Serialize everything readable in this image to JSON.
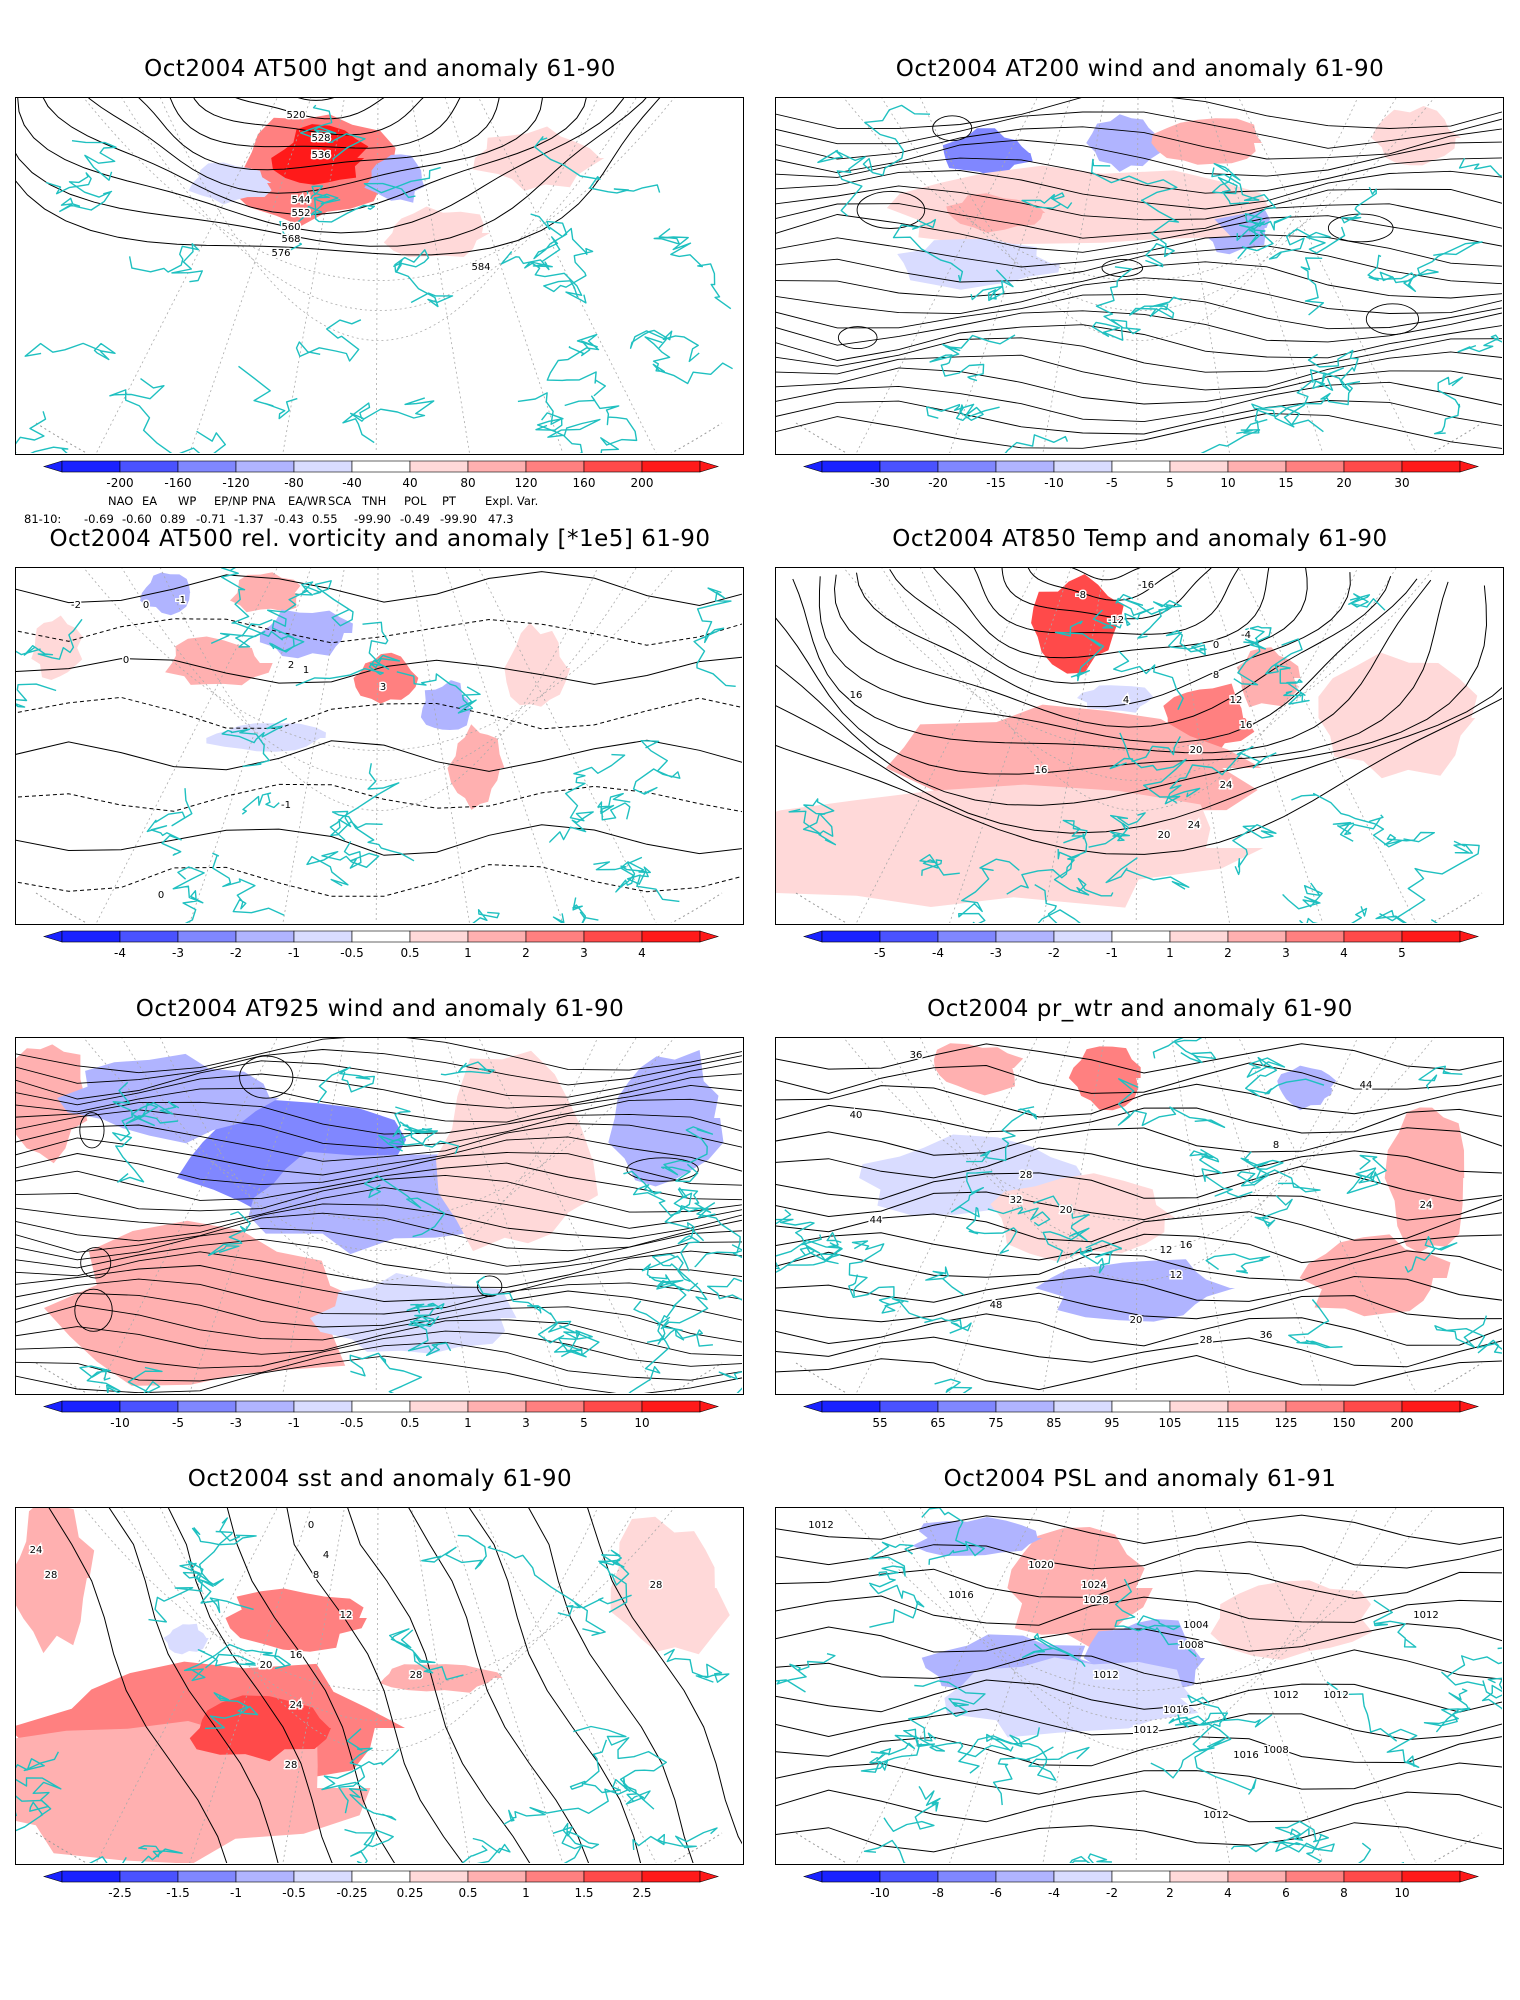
{
  "colors": {
    "coast": "#1fc0c0",
    "contour": "#000000",
    "pos_scale": [
      "#ffd9d9",
      "#ffb0b0",
      "#ff8080",
      "#ff4a4a",
      "#ff1a1a"
    ],
    "neg_scale": [
      "#d9dcff",
      "#b0b4ff",
      "#8087ff",
      "#4a52ff",
      "#1a22ff"
    ]
  },
  "panels": [
    {
      "id": "hgt500",
      "title": "Oct2004 AT500 hgt and anomaly 61-90",
      "colorbar": [
        "-200",
        "-160",
        "-120",
        "-80",
        "-40",
        "40",
        "80",
        "120",
        "160",
        "200"
      ],
      "contour_labels": [
        "520",
        "528",
        "536",
        "544",
        "552",
        "560",
        "568",
        "576",
        "584"
      ],
      "indices": {
        "names": [
          "NAO",
          "EA",
          "WP",
          "EP/NP",
          "PNA",
          "EA/WR",
          "SCA",
          "TNH",
          "POL",
          "PT",
          "Expl. Var."
        ],
        "row_label": "81-10:",
        "values": [
          "-0.69",
          "-0.60",
          "0.89",
          "-0.71",
          "-1.37",
          "-0.43",
          "0.55",
          "-99.90",
          "-0.49",
          "-99.90",
          "47.3"
        ]
      }
    },
    {
      "id": "wind200",
      "title": "Oct2004 AT200 wind and anomaly 61-90",
      "colorbar": [
        "-30",
        "-20",
        "-15",
        "-10",
        "-5",
        "5",
        "10",
        "15",
        "20",
        "30"
      ],
      "contour_labels": []
    },
    {
      "id": "vort500",
      "title": "Oct2004 AT500 rel. vorticity and anomaly [*1e5] 61-90",
      "colorbar": [
        "-4",
        "-3",
        "-2",
        "-1",
        "-0.5",
        "0.5",
        "1",
        "2",
        "3",
        "4"
      ],
      "contour_labels": [
        "0",
        "-1",
        "1",
        "2",
        "3",
        "-2",
        "0",
        "-1",
        "0"
      ]
    },
    {
      "id": "temp850",
      "title": "Oct2004 AT850 Temp and anomaly 61-90",
      "colorbar": [
        "-5",
        "-4",
        "-3",
        "-2",
        "-1",
        "1",
        "2",
        "3",
        "4",
        "5"
      ],
      "contour_labels": [
        "-16",
        "-8",
        "-12",
        "4",
        "8",
        "12",
        "16",
        "20",
        "24",
        "16",
        "20",
        "24",
        "16",
        "0",
        "-4"
      ]
    },
    {
      "id": "wind925",
      "title": "Oct2004 AT925 wind and anomaly 61-90",
      "colorbar": [
        "-10",
        "-5",
        "-3",
        "-1",
        "-0.5",
        "0.5",
        "1",
        "3",
        "5",
        "10"
      ],
      "contour_labels": []
    },
    {
      "id": "prwtr",
      "title": "Oct2004 pr_wtr and anomaly 61-90",
      "colorbar": [
        "55",
        "65",
        "75",
        "85",
        "95",
        "105",
        "115",
        "125",
        "150",
        "200"
      ],
      "contour_labels": [
        "36",
        "40",
        "44",
        "48",
        "28",
        "32",
        "20",
        "16",
        "12",
        "8",
        "24",
        "12",
        "20",
        "28",
        "36",
        "44"
      ]
    },
    {
      "id": "sst",
      "title": "Oct2004 sst and anomaly 61-90",
      "colorbar": [
        "-2.5",
        "-1.5",
        "-1",
        "-0.5",
        "-0.25",
        "0.25",
        "0.5",
        "1",
        "1.5",
        "2.5"
      ],
      "contour_labels": [
        "24",
        "28",
        "0",
        "4",
        "8",
        "12",
        "16",
        "20",
        "24",
        "28",
        "28",
        "28"
      ]
    },
    {
      "id": "psl",
      "title": "Oct2004 PSL and anomaly 61-91",
      "colorbar": [
        "-10",
        "-8",
        "-6",
        "-4",
        "-2",
        "2",
        "4",
        "6",
        "8",
        "10"
      ],
      "contour_labels": [
        "1012",
        "1016",
        "1020",
        "1024",
        "1028",
        "1008",
        "1004",
        "1012",
        "1016",
        "1012",
        "1012",
        "1016",
        "1012",
        "1008",
        "1012",
        "1012"
      ]
    }
  ]
}
